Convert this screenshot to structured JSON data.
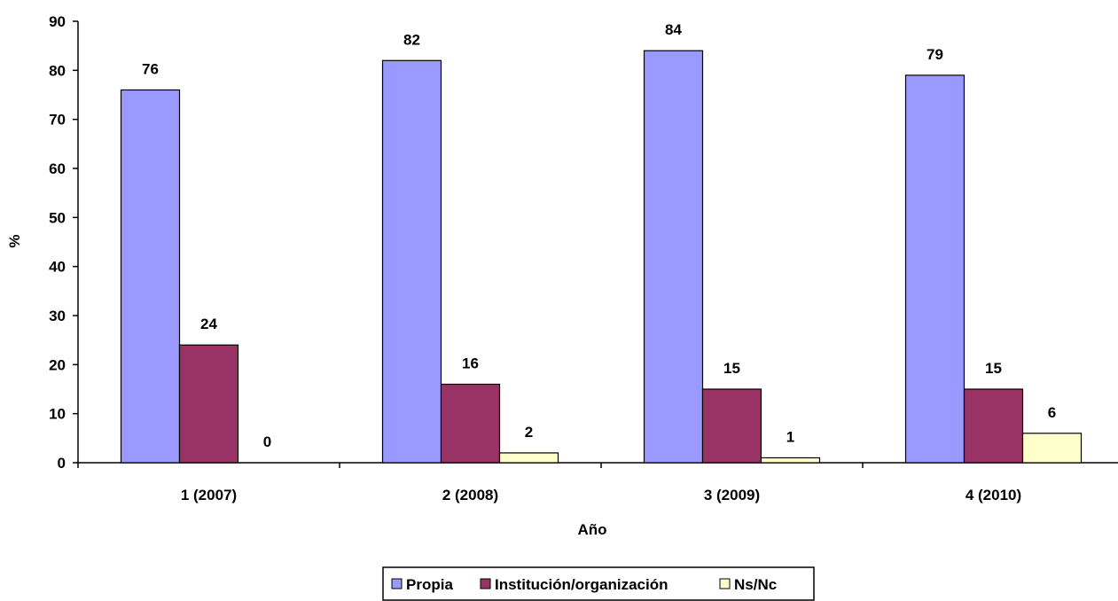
{
  "chart_data": {
    "type": "bar",
    "categories": [
      "1 (2007)",
      "2 (2008)",
      "3 (2009)",
      "4 (2010)"
    ],
    "series": [
      {
        "name": "Propia",
        "values": [
          76,
          82,
          84,
          79
        ],
        "color": "#9999ff"
      },
      {
        "name": "Institución/organización",
        "values": [
          24,
          16,
          15,
          15
        ],
        "color": "#993366"
      },
      {
        "name": "Ns/Nc",
        "values": [
          0,
          2,
          1,
          6
        ],
        "color": "#ffffcc"
      }
    ],
    "xlabel": "Año",
    "ylabel": "%",
    "ylim": [
      0,
      90
    ],
    "yticks": [
      0,
      10,
      20,
      30,
      40,
      50,
      60,
      70,
      80,
      90
    ],
    "grid": false,
    "legend_position": "bottom"
  }
}
